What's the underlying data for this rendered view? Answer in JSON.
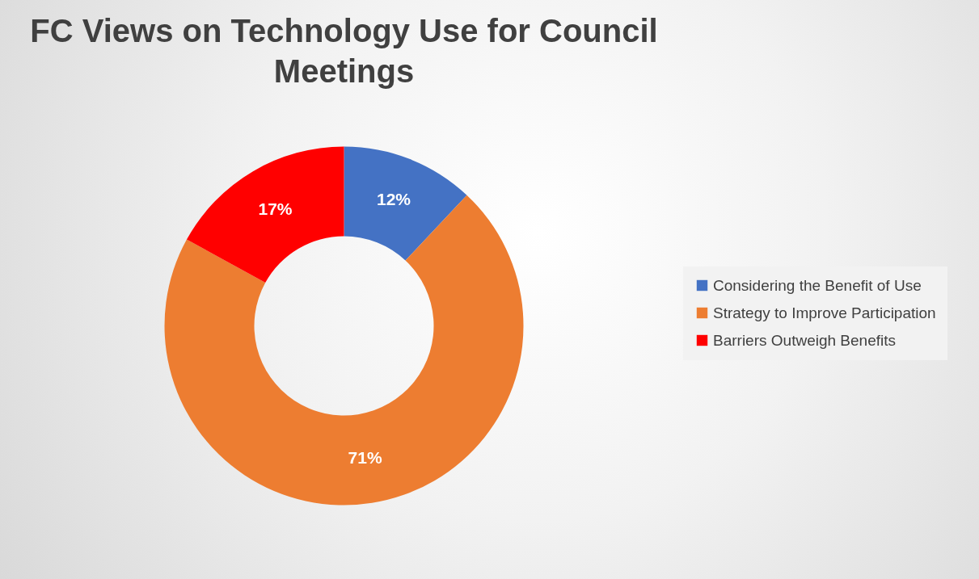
{
  "chart_data": {
    "type": "donut",
    "title": "FC Views on Technology Use for Council Meetings",
    "categories": [
      "Considering the Benefit of Use",
      "Strategy to Improve Participation",
      "Barriers Outweigh Benefits"
    ],
    "values": [
      12,
      71,
      17
    ],
    "colors": [
      "#4472c4",
      "#ed7d31",
      "#ff0000"
    ],
    "value_labels": [
      "12%",
      "71%",
      "17%"
    ],
    "legend": "right"
  }
}
